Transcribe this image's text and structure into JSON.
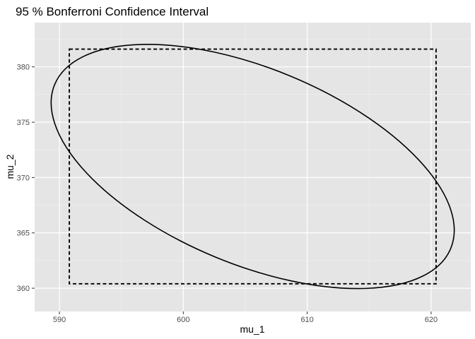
{
  "chart_data": {
    "type": "line",
    "title": "95 %  Bonferroni Confidence Interval",
    "xlabel": "mu_1",
    "ylabel": "mu_2",
    "xlim": [
      588.0,
      623.2
    ],
    "ylim": [
      357.9,
      384.0
    ],
    "x_ticks": [
      590,
      600,
      610,
      620
    ],
    "y_ticks": [
      360,
      365,
      370,
      375,
      380
    ],
    "grid": true,
    "panel_background": "#e5e5e5",
    "grid_major_color": "#ffffff",
    "line_color": "#000000",
    "series": [
      {
        "kind": "ellipse",
        "center": [
          605.6,
          371.0
        ],
        "semi_axes_data": [
          17.3,
          8.85
        ],
        "rotation_deg_screen": 22.5,
        "dashed": false
      },
      {
        "kind": "rectangle",
        "x": [
          590.8,
          620.4
        ],
        "y": [
          360.4,
          381.6
        ],
        "dashed": true
      }
    ]
  }
}
